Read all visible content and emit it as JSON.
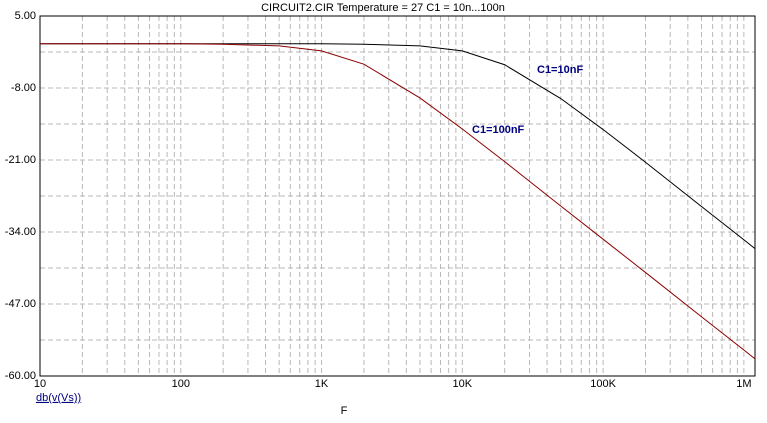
{
  "chart_data": {
    "type": "line",
    "title": "CIRCUIT2.CIR Temperature = 27 C1 = 10n...100n",
    "xlabel": "F",
    "ylabel": "db(v(Vs))",
    "log_x": true,
    "grid": true,
    "x": [
      10,
      100,
      200,
      500,
      1000,
      2000,
      5000,
      10000,
      20000,
      50000,
      100000,
      200000,
      500000,
      1000000,
      1200000
    ],
    "series": [
      {
        "name": "C1=10nF",
        "color": "#000000",
        "label_color": "#000080",
        "values": [
          0,
          0,
          0,
          0,
          0,
          -0.1,
          -0.4,
          -1.3,
          -3.8,
          -9.9,
          -15.5,
          -21.4,
          -29.4,
          -35.4,
          -37.0
        ]
      },
      {
        "name": "C1=100nF",
        "color": "#8b0000",
        "label_color": "#000080",
        "values": [
          0,
          0,
          -0.1,
          -0.4,
          -1.3,
          -3.7,
          -9.8,
          -15.4,
          -21.3,
          -29.3,
          -35.3,
          -41.3,
          -49.3,
          -55.3,
          -56.9
        ]
      }
    ],
    "xlim": [
      10,
      1200000
    ],
    "xticks": [
      10,
      100,
      {
        "value": 1000,
        "label": "1K"
      },
      {
        "value": 10000,
        "label": "10K"
      },
      {
        "value": 100000,
        "label": "100K"
      },
      {
        "value": 1000000,
        "label": "1M"
      }
    ],
    "ylim": [
      -60,
      5
    ],
    "yticks": [
      {
        "value": 5,
        "label": "5.00"
      },
      {
        "value": -8,
        "label": "-8.00"
      },
      {
        "value": -21,
        "label": "-21.00"
      },
      {
        "value": -34,
        "label": "-34.00"
      },
      {
        "value": -47,
        "label": "-47.00"
      },
      {
        "value": -60,
        "label": "-60.00"
      }
    ]
  }
}
